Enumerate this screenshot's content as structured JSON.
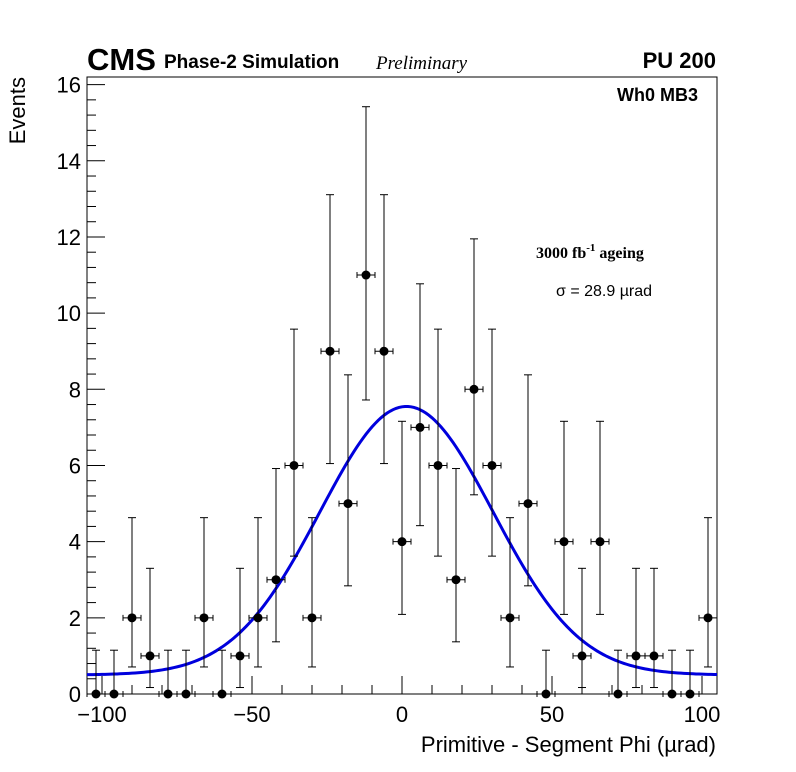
{
  "chart_data": {
    "type": "scatter",
    "header": {
      "experiment": "CMS",
      "subtitle": "Phase-2 Simulation",
      "status": "Preliminary",
      "pileup": "PU 200",
      "station": "Wh0 MB3",
      "ageing_main": "3000 fb",
      "ageing_exp": "-1",
      "ageing_suffix": " ageing",
      "sigma_text": "σ = 28.9 µrad"
    },
    "xlabel": "Primitive - Segment Phi (µrad)",
    "ylabel": "Events",
    "xlim": [
      -105,
      105
    ],
    "ylim": [
      0,
      16.2
    ],
    "x_ticks": [
      -100,
      -50,
      0,
      50,
      100
    ],
    "x_tick_labels": [
      "−100",
      "−50",
      "0",
      "50",
      "100"
    ],
    "y_ticks": [
      0,
      2,
      4,
      6,
      8,
      10,
      12,
      14,
      16
    ],
    "y_tick_labels": [
      "0",
      "2",
      "4",
      "6",
      "8",
      "10",
      "12",
      "14",
      "16"
    ],
    "bin_half_width": 3,
    "series": [
      {
        "name": "data",
        "color": "#000000",
        "x": [
          -102,
          -96,
          -90,
          -84,
          -78,
          -72,
          -66,
          -60,
          -54,
          -48,
          -42,
          -36,
          -30,
          -24,
          -18,
          -12,
          -6,
          0,
          6,
          12,
          18,
          24,
          30,
          36,
          42,
          48,
          54,
          60,
          66,
          72,
          78,
          84,
          90,
          96,
          102
        ],
        "y": [
          0,
          0,
          2,
          1,
          0,
          0,
          2,
          0,
          1,
          2,
          3,
          6,
          2,
          9,
          5,
          11,
          9,
          4,
          7,
          6,
          3,
          8,
          6,
          2,
          5,
          0,
          4,
          1,
          4,
          0,
          1,
          1,
          0,
          0,
          2
        ],
        "err_up": [
          1.15,
          1.15,
          2.63,
          2.3,
          1.15,
          1.15,
          2.63,
          1.15,
          2.3,
          2.63,
          2.92,
          3.58,
          2.63,
          4.11,
          3.38,
          4.42,
          4.11,
          3.16,
          3.77,
          3.58,
          2.92,
          3.95,
          3.58,
          2.63,
          3.38,
          1.15,
          3.16,
          2.3,
          3.16,
          1.15,
          2.3,
          2.3,
          1.15,
          1.15,
          2.63
        ],
        "err_down": [
          0,
          0,
          1.29,
          0.83,
          0,
          0,
          1.29,
          0,
          0.83,
          1.29,
          1.63,
          2.38,
          1.29,
          2.95,
          2.16,
          3.28,
          2.95,
          1.91,
          2.58,
          2.38,
          1.63,
          2.77,
          2.38,
          1.29,
          2.16,
          0,
          1.91,
          0.83,
          1.91,
          0,
          0.83,
          0.83,
          0,
          0,
          1.29
        ]
      },
      {
        "name": "gaussian fit",
        "color": "#0000dd",
        "fit": {
          "amplitude": 7.05,
          "mean": 1.5,
          "sigma": 28.9,
          "baseline": 0.5
        }
      }
    ]
  }
}
